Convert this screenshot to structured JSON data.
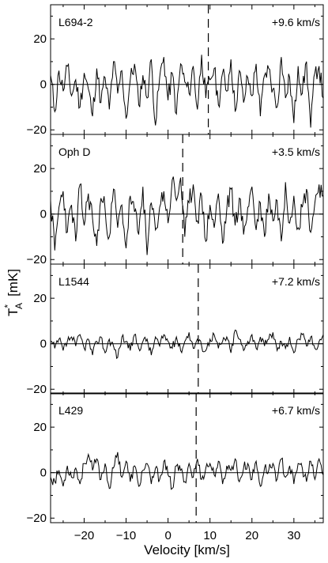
{
  "chart_data": {
    "type": "line",
    "xlabel": "Velocity  [km/s]",
    "ylabel": {
      "main": "T",
      "sup": "*",
      "sub": "A",
      "unit": "[mK]"
    },
    "xlim": [
      -28,
      37
    ],
    "ylim": [
      -22,
      35
    ],
    "x_ticks": [
      -20,
      -10,
      0,
      10,
      20,
      30
    ],
    "y_ticks": [
      -20,
      0,
      20
    ],
    "panels": [
      {
        "source": "L694-2",
        "velocity_label": "+9.6 km/s",
        "v_lsr": 9.6,
        "amplitude_mK": 9,
        "seed": 11,
        "series": [
          {
            "x": [
              -28,
              -27,
              -26,
              -25,
              -24,
              -23,
              -22,
              -21,
              -20,
              -19,
              -18,
              -17,
              -16,
              -15,
              -14,
              -13,
              -12,
              -11,
              -10,
              -9,
              -8,
              -7,
              -6,
              -5,
              -4,
              -3,
              -2,
              -1,
              0,
              1,
              2,
              3,
              4,
              5,
              6,
              7,
              8,
              9,
              10,
              11,
              12,
              13,
              14,
              15,
              16,
              17,
              18,
              19,
              20,
              21,
              22,
              23,
              24,
              25,
              26,
              27,
              28,
              29,
              30,
              31,
              32,
              33,
              34,
              35,
              36,
              37
            ],
            "y": [
              4,
              -12,
              6,
              -3,
              8,
              -5,
              2,
              -10,
              5,
              -2,
              -14,
              7,
              -8,
              3,
              -11,
              10,
              -4,
              6,
              -15,
              2,
              9,
              -9,
              4,
              -6,
              11,
              -18,
              3,
              12,
              -7,
              5,
              -13,
              9,
              1,
              -4,
              8,
              -11,
              13,
              -6,
              2,
              7,
              -9,
              5,
              -3,
              11,
              -12,
              6,
              -8,
              3,
              -5,
              9,
              -14,
              4,
              7,
              -2,
              -10,
              12,
              -6,
              3,
              -17,
              8,
              -4,
              10,
              -19,
              5,
              8,
              -6
            ]
          }
        ]
      },
      {
        "source": "Oph D",
        "velocity_label": "+3.5 km/s",
        "v_lsr": 3.5,
        "amplitude_mK": 10,
        "seed": 23,
        "series": [
          {
            "x": [
              -28,
              -27,
              -26,
              -25,
              -24,
              -23,
              -22,
              -21,
              -20,
              -19,
              -18,
              -17,
              -16,
              -15,
              -14,
              -13,
              -12,
              -11,
              -10,
              -9,
              -8,
              -7,
              -6,
              -5,
              -4,
              -3,
              -2,
              -1,
              0,
              1,
              2,
              3,
              4,
              5,
              6,
              7,
              8,
              9,
              10,
              11,
              12,
              13,
              14,
              15,
              16,
              17,
              18,
              19,
              20,
              21,
              22,
              23,
              24,
              25,
              26,
              27,
              28,
              29,
              30,
              31,
              32,
              33,
              34,
              35,
              36,
              37
            ],
            "y": [
              6,
              -16,
              3,
              10,
              -8,
              4,
              -12,
              13,
              -5,
              9,
              -2,
              -14,
              7,
              2,
              -10,
              11,
              -6,
              4,
              -15,
              8,
              1,
              -9,
              12,
              -18,
              5,
              -7,
              3,
              10,
              -4,
              15,
              6,
              16,
              -10,
              5,
              13,
              -3,
              8,
              -12,
              4,
              -6,
              9,
              -13,
              2,
              11,
              -5,
              7,
              -9,
              3,
              12,
              -7,
              5,
              -10,
              9,
              -3,
              6,
              -12,
              14,
              -4,
              8,
              -6,
              3,
              11,
              -8,
              5,
              13,
              8
            ]
          }
        ]
      },
      {
        "source": "L1544",
        "velocity_label": "+7.2 km/s",
        "v_lsr": 7.2,
        "amplitude_mK": 4,
        "seed": 37,
        "series": [
          {
            "x": [
              -28,
              -27,
              -26,
              -25,
              -24,
              -23,
              -22,
              -21,
              -20,
              -19,
              -18,
              -17,
              -16,
              -15,
              -14,
              -13,
              -12,
              -11,
              -10,
              -9,
              -8,
              -7,
              -6,
              -5,
              -4,
              -3,
              -2,
              -1,
              0,
              1,
              2,
              3,
              4,
              5,
              6,
              7,
              8,
              9,
              10,
              11,
              12,
              13,
              14,
              15,
              16,
              17,
              18,
              19,
              20,
              21,
              22,
              23,
              24,
              25,
              26,
              27,
              28,
              29,
              30,
              31,
              32,
              33,
              34,
              35,
              36,
              37
            ],
            "y": [
              1,
              -2,
              2,
              -3,
              1,
              3,
              -1,
              4,
              -2,
              2,
              -5,
              1,
              3,
              -4,
              2,
              -1,
              -6,
              3,
              1,
              -3,
              4,
              -2,
              1,
              2,
              -5,
              3,
              -1,
              4,
              1,
              -2,
              3,
              -3,
              1,
              5,
              -2,
              2,
              -1,
              -3,
              2,
              4,
              -2,
              1,
              3,
              -4,
              6,
              2,
              -3,
              1,
              4,
              -2,
              3,
              -1,
              2,
              5,
              -3,
              1,
              -2,
              3,
              -4,
              2,
              4,
              -1,
              3,
              -2,
              1,
              4
            ]
          }
        ]
      },
      {
        "source": "L429",
        "velocity_label": "+6.7 km/s",
        "v_lsr": 6.7,
        "amplitude_mK": 5,
        "seed": 53,
        "series": [
          {
            "x": [
              -28,
              -27,
              -26,
              -25,
              -24,
              -23,
              -22,
              -21,
              -20,
              -19,
              -18,
              -17,
              -16,
              -15,
              -14,
              -13,
              -12,
              -11,
              -10,
              -9,
              -8,
              -7,
              -6,
              -5,
              -4,
              -3,
              -2,
              -1,
              0,
              1,
              2,
              3,
              4,
              5,
              6,
              7,
              8,
              9,
              10,
              11,
              12,
              13,
              14,
              15,
              16,
              17,
              18,
              19,
              20,
              21,
              22,
              23,
              24,
              25,
              26,
              27,
              28,
              29,
              30,
              31,
              32,
              33,
              34,
              35,
              36,
              37
            ],
            "y": [
              -2,
              -4,
              1,
              -6,
              3,
              -2,
              2,
              -5,
              4,
              8,
              1,
              6,
              -3,
              4,
              -7,
              2,
              9,
              -2,
              5,
              -4,
              3,
              -6,
              1,
              4,
              -5,
              2,
              -3,
              5,
              -1,
              -7,
              3,
              1,
              -4,
              4,
              -2,
              6,
              -3,
              2,
              4,
              -1,
              5,
              -5,
              3,
              1,
              6,
              -4,
              2,
              4,
              -3,
              5,
              -6,
              2,
              1,
              4,
              -3,
              6,
              -2,
              3,
              -5,
              4,
              2,
              -4,
              5,
              -3,
              6,
              -1
            ]
          }
        ]
      }
    ]
  }
}
